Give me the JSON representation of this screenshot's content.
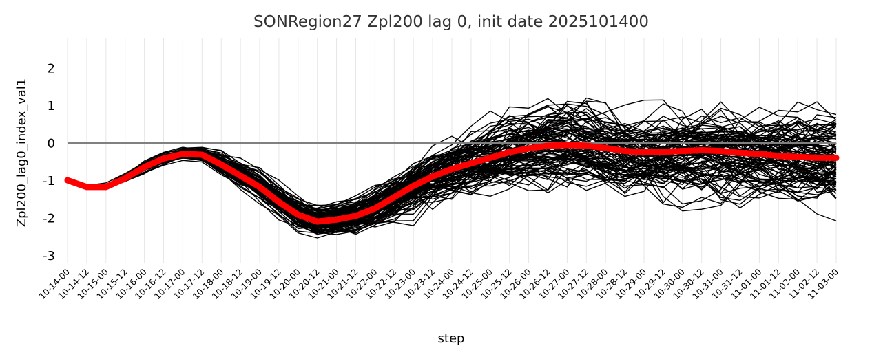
{
  "chart_data": {
    "type": "line",
    "title": "SONRegion27 Zpl200 lag 0, init date 2025101400",
    "xlabel": "step",
    "ylabel": "Zpl200_lag0_index_val1",
    "ylim": [
      -3.2,
      2.8
    ],
    "yticks": [
      2,
      1,
      0,
      -1,
      -2,
      -3
    ],
    "grid": true,
    "legend": "none",
    "reference_line": {
      "y": 0,
      "color": "#808080"
    },
    "categories": [
      "10-14-00",
      "10-14-12",
      "10-15-00",
      "10-15-12",
      "10-16-00",
      "10-16-12",
      "10-17-00",
      "10-17-12",
      "10-18-00",
      "10-18-12",
      "10-19-00",
      "10-19-12",
      "10-20-00",
      "10-20-12",
      "10-21-00",
      "10-21-12",
      "10-22-00",
      "10-22-12",
      "10-23-00",
      "10-23-12",
      "10-24-00",
      "10-24-12",
      "10-25-00",
      "10-25-12",
      "10-26-00",
      "10-26-12",
      "10-27-00",
      "10-27-12",
      "10-28-00",
      "10-28-12",
      "10-29-00",
      "10-29-12",
      "10-30-00",
      "10-30-12",
      "10-31-00",
      "10-31-12",
      "11-01-00",
      "11-01-12",
      "11-02-00",
      "11-02-12",
      "11-03-00"
    ],
    "ensemble_members": 100,
    "ensemble_color": "#000000",
    "mean_series": {
      "color": "#ff0000",
      "values": [
        -1.0,
        -1.18,
        -1.18,
        -0.95,
        -0.65,
        -0.42,
        -0.3,
        -0.32,
        -0.58,
        -0.88,
        -1.18,
        -1.58,
        -1.92,
        -2.1,
        -2.05,
        -1.95,
        -1.75,
        -1.45,
        -1.15,
        -0.9,
        -0.7,
        -0.55,
        -0.4,
        -0.25,
        -0.15,
        -0.08,
        -0.06,
        -0.08,
        -0.14,
        -0.22,
        -0.25,
        -0.24,
        -0.22,
        -0.2,
        -0.22,
        -0.27,
        -0.3,
        -0.35,
        -0.38,
        -0.4,
        -0.4
      ]
    },
    "spread": [
      0.0,
      0.02,
      0.04,
      0.06,
      0.1,
      0.1,
      0.1,
      0.12,
      0.18,
      0.22,
      0.26,
      0.3,
      0.3,
      0.28,
      0.3,
      0.33,
      0.38,
      0.45,
      0.52,
      0.58,
      0.62,
      0.65,
      0.68,
      0.7,
      0.7,
      0.7,
      0.72,
      0.74,
      0.76,
      0.78,
      0.8,
      0.82,
      0.84,
      0.86,
      0.88,
      0.88,
      0.9,
      0.9,
      0.9,
      0.9,
      0.9
    ]
  }
}
